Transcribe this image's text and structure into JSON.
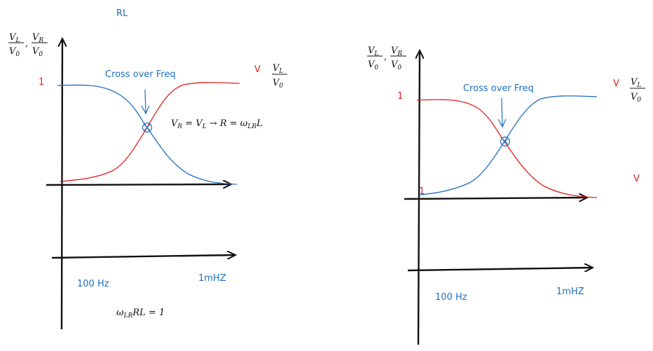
{
  "title": "RL",
  "colors": {
    "blue": "#1e6fbf",
    "red": "#e02020",
    "ink": "#111111"
  },
  "left_panel": {
    "axis_label_a_num": "V",
    "axis_label_a_num_sub": "L",
    "axis_label_a_den": "V",
    "axis_label_a_den_sub": "0",
    "axis_label_b_num": "V",
    "axis_label_b_num_sub": "R",
    "axis_label_b_den": "V",
    "axis_label_b_den_sub": "0",
    "comma": ",",
    "y_one": "1",
    "crossover_label": "Cross over Freq",
    "legend_v": "V",
    "legend_frac_num": "V",
    "legend_frac_num_sub": "L",
    "legend_frac_den": "V",
    "legend_frac_den_sub": "0",
    "equation_parts": [
      "V",
      "R",
      " = V",
      "L",
      " → R = ω",
      "LR",
      "L"
    ],
    "freq_low": "100 Hz",
    "freq_high": "1mHZ",
    "bottom_equation_parts": [
      "ω",
      "LR",
      "RL = 1"
    ]
  },
  "right_panel": {
    "axis_label_a_num": "V",
    "axis_label_a_num_sub": "L",
    "axis_label_a_den": "V",
    "axis_label_a_den_sub": "0",
    "axis_label_b_num": "V",
    "axis_label_b_num_sub": "R",
    "axis_label_b_den": "V",
    "axis_label_b_den_sub": "0",
    "comma": ",",
    "y_one": "1",
    "origin_one": "1",
    "crossover_label": "Cross over Freq",
    "legend_v": "V",
    "legend_frac_num": "V",
    "legend_frac_num_sub": "L",
    "legend_frac_den": "V",
    "legend_frac_den_sub": "0",
    "legend_v2": "V",
    "freq_low": "100 Hz",
    "freq_high": "1mHZ"
  }
}
